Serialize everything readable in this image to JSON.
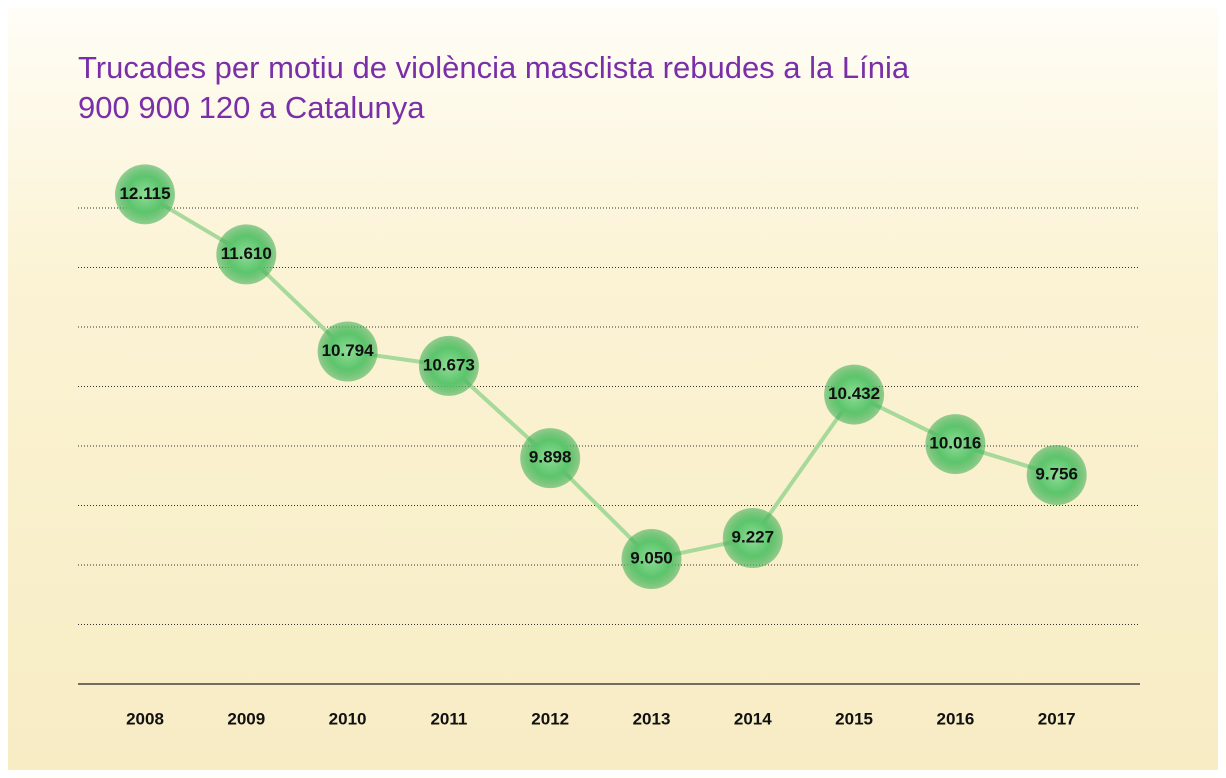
{
  "chart_data": {
    "type": "line",
    "title": "Trucades per motiu de violència masclista rebudes a la Línia 900 900 120 a Catalunya",
    "categories": [
      "2008",
      "2009",
      "2010",
      "2011",
      "2012",
      "2013",
      "2014",
      "2015",
      "2016",
      "2017"
    ],
    "series": [
      {
        "name": "Trucades",
        "color": "#3fb85a",
        "values": [
          12115,
          11610,
          10794,
          10673,
          9898,
          9050,
          9227,
          10432,
          10016,
          9756
        ],
        "value_labels": [
          "12.115",
          "11.610",
          "10.794",
          "10.673",
          "9.898",
          "9.050",
          "9.227",
          "10.432",
          "10.016",
          "9.756"
        ]
      }
    ],
    "ylim": [
      8000,
      12500
    ],
    "yticks": [
      8500,
      9000,
      9500,
      10000,
      10500,
      11000,
      11500,
      12000
    ],
    "grid": true
  }
}
